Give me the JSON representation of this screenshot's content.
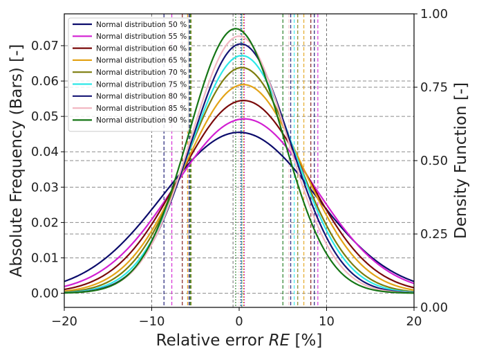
{
  "chart_data": {
    "type": "line",
    "xlabel_prefix": "Relative error ",
    "xlabel_italic": "RE",
    "xlabel_suffix": " [%]",
    "ylabel_left": "Absolute Frequency (Bars) [-]",
    "ylabel_right": "Density Function [-]",
    "xlim": [
      -20,
      20
    ],
    "ylim_left": [
      -0.004,
      0.079
    ],
    "ylim_right": [
      0.0,
      1.0
    ],
    "x_ticks": [
      -20,
      -10,
      0,
      10,
      20
    ],
    "x_tick_labels": [
      "−20",
      "−10",
      "0",
      "10",
      "20"
    ],
    "y_left_ticks": [
      0.0,
      0.01,
      0.02,
      0.03,
      0.04,
      0.05,
      0.06,
      0.07
    ],
    "y_left_tick_labels": [
      "0.00",
      "0.01",
      "0.02",
      "0.03",
      "0.04",
      "0.05",
      "0.06",
      "0.07"
    ],
    "y_right_ticks": [
      0.0,
      0.25,
      0.5,
      0.75,
      1.0
    ],
    "y_right_tick_labels": [
      "0.00",
      "0.25",
      "0.50",
      "0.75",
      "1.00"
    ],
    "grid": true,
    "legend_position": "top-left",
    "series": [
      {
        "name": "Normal distribution 50 %",
        "color": "#0b0b6b",
        "mean": 0.0,
        "peak": 0.0455,
        "sigma": 8.75,
        "bounds": [
          -8.6,
          8.6
        ]
      },
      {
        "name": "Normal distribution 55 %",
        "color": "#d21fd2",
        "mean": 0.6,
        "peak": 0.0493,
        "sigma": 8.08,
        "bounds": [
          -7.7,
          9.0
        ]
      },
      {
        "name": "Normal distribution 60 %",
        "color": "#7a0a0a",
        "mean": 0.5,
        "peak": 0.0545,
        "sigma": 7.32,
        "bounds": [
          -6.5,
          8.2
        ]
      },
      {
        "name": "Normal distribution 65 %",
        "color": "#e3a317",
        "mean": 0.5,
        "peak": 0.059,
        "sigma": 6.76,
        "bounds": [
          -5.9,
          7.4
        ]
      },
      {
        "name": "Normal distribution 70 %",
        "color": "#7d7d0d",
        "mean": 0.3,
        "peak": 0.0638,
        "sigma": 6.25,
        "bounds": [
          -5.5,
          6.7
        ]
      },
      {
        "name": "Normal distribution 75 %",
        "color": "#2de8e8",
        "mean": 0.3,
        "peak": 0.0672,
        "sigma": 5.94,
        "bounds": [
          -5.8,
          6.3
        ]
      },
      {
        "name": "Normal distribution 80 %",
        "color": "#151575",
        "mean": 0.2,
        "peak": 0.0705,
        "sigma": 5.66,
        "bounds": [
          -5.7,
          5.9
        ]
      },
      {
        "name": "Normal distribution 85 %",
        "color": "#f2b8c2",
        "mean": 0.0,
        "peak": 0.0727,
        "sigma": 5.49,
        "bounds": [
          -5.8,
          5.7
        ]
      },
      {
        "name": "Normal distribution 90 %",
        "color": "#157515",
        "mean": -0.4,
        "peak": 0.0748,
        "sigma": 5.33,
        "bounds": [
          -5.6,
          5.0
        ]
      }
    ],
    "gray_reference_lines": [
      -10,
      -0.7,
      0.3,
      10
    ]
  }
}
